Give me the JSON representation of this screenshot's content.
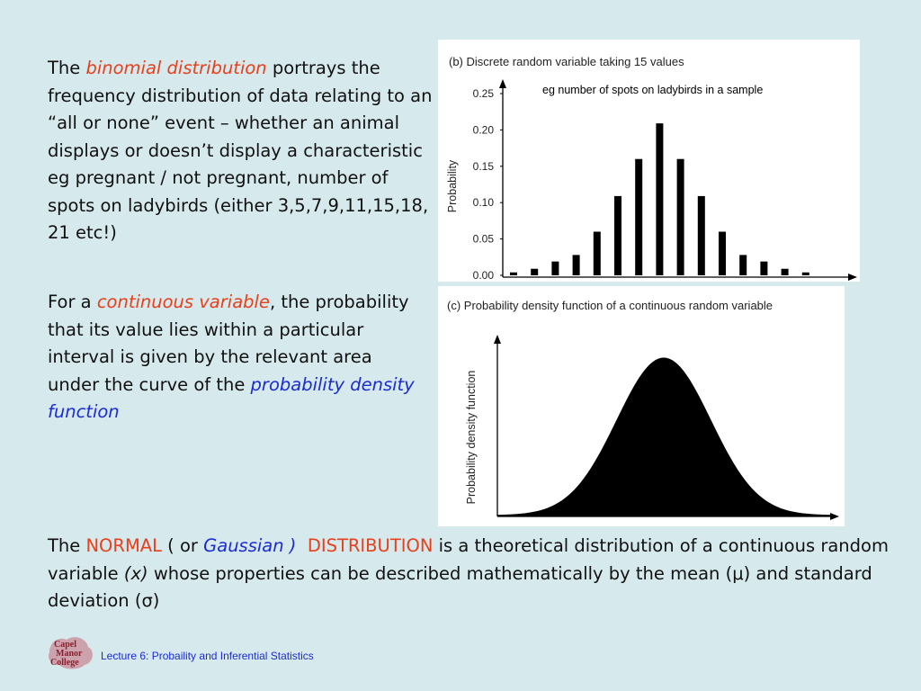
{
  "para1": {
    "lead": "The ",
    "term": "binomial distribution",
    "rest": " portrays the frequency distribution of data relating to an “all or none” event – whether an animal displays or doesn’t display a characteristic eg pregnant / not pregnant, number of spots on ladybirds (either 3,5,7,9,11,15,18, 21 etc!)"
  },
  "para2": {
    "lead": "For a ",
    "term": "continuous variable",
    "mid": ", the probability that its value lies within a particular interval is given by the relevant area under the curve of the ",
    "term2": "probability density function"
  },
  "para3": {
    "lead": "The ",
    "normal": "NORMAL",
    "open": " ( or ",
    "gaussian": "Gaussian )",
    "space": "  ",
    "distribution": "DISTRIBUTION",
    "rest": " is a theoretical distribution of a continuous random variable ",
    "x": "(x)",
    "rest2": "  whose properties can be described mathematically by the mean (μ) and standard deviation (σ)"
  },
  "footer": {
    "logo_text": "Capel Manor College",
    "lecture": "Lecture 6: Probaility and Inferential Statistics"
  },
  "colors": {
    "background": "#d6e9ec",
    "accent_red": "#e8401c",
    "accent_blue": "#1b2bd6"
  },
  "chart_data": [
    {
      "type": "bar",
      "title": "(b) Discrete random variable taking 15 values",
      "annotation": "eg number of spots on ladybirds in a sample",
      "ylabel": "Probability",
      "xlabel": "",
      "ylim": [
        0,
        0.25
      ],
      "yticks": [
        "0.25",
        "0.20",
        "0.15",
        "0.10",
        "0.05",
        "0.00"
      ],
      "values": [
        0.004,
        0.009,
        0.019,
        0.028,
        0.06,
        0.109,
        0.16,
        0.209,
        0.16,
        0.109,
        0.06,
        0.028,
        0.019,
        0.009,
        0.004
      ]
    },
    {
      "type": "area",
      "title": "(c) Probability density function of a continuous random variable",
      "ylabel": "Probability density function",
      "xlabel": "",
      "shape": "normal bell curve"
    }
  ]
}
